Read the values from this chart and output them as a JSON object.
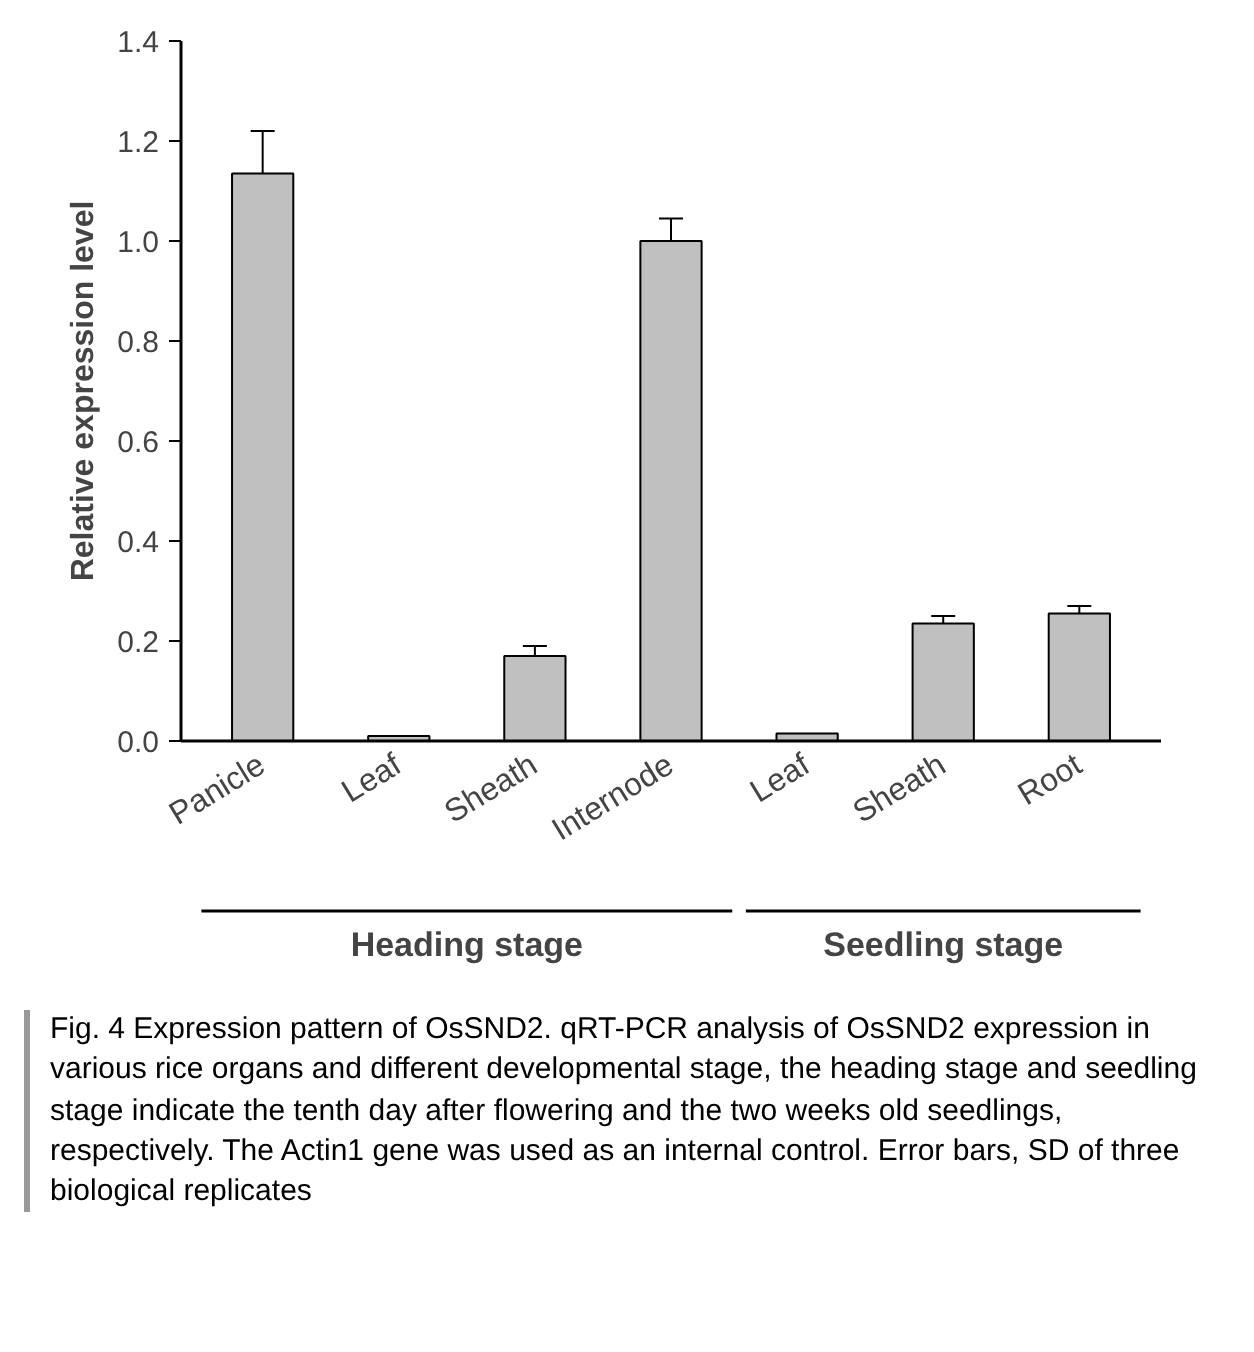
{
  "chart_data": {
    "type": "bar",
    "categories": [
      "Panicle",
      "Leaf",
      "Sheath",
      "Internode",
      "Leaf",
      "Sheath",
      "Root"
    ],
    "values": [
      1.135,
      0.01,
      0.17,
      1.0,
      0.015,
      0.235,
      0.255
    ],
    "errors": [
      [
        1.135,
        1.22
      ],
      null,
      [
        0.17,
        0.19
      ],
      [
        1.0,
        1.045
      ],
      null,
      [
        0.235,
        0.25
      ],
      [
        0.255,
        0.27
      ]
    ],
    "color": "#c0c0c0",
    "ylabel": "Relative expression level",
    "ylim": [
      0,
      1.4
    ],
    "yticks": [
      {
        "value": 0,
        "label": "0.0"
      },
      0.2,
      0.4,
      0.6,
      0.8,
      {
        "value": 1,
        "label": "1.0"
      },
      1.2,
      1.4
    ],
    "grid": false,
    "annotations": [
      "Heading stage",
      "Seedling stage",
      "Fig. 4 Expression pattern of OsSND2. qRT-PCR analysis of OsSND2 expression in various rice organs and different developmental stage, the heading stage and seedling stage indicate the tenth day after flowering and the two weeks old seedlings, respectively. The Actin1 gene was used as an internal control. Error bars, SD of three biological replicates"
    ]
  }
}
